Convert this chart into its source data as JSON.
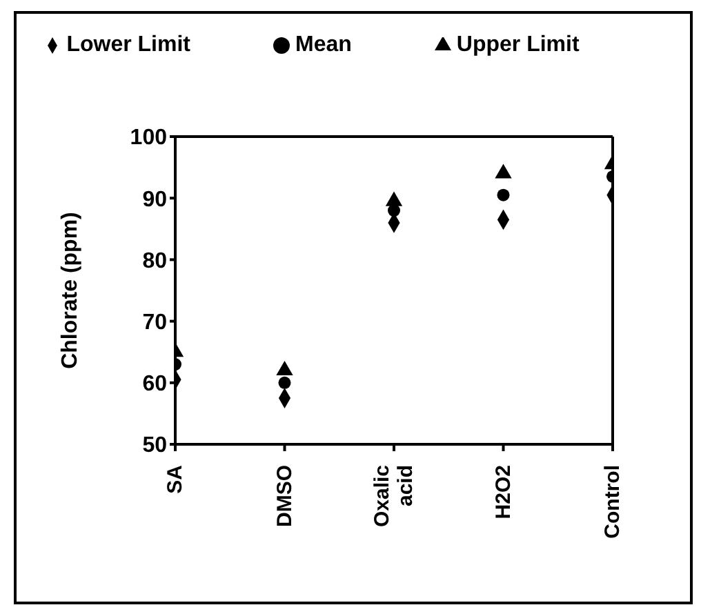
{
  "chart_data": {
    "type": "scatter",
    "ylabel": "Chlorate (ppm)",
    "categories": [
      "SA",
      "DMSO",
      "Oxalic acid",
      "H2O2",
      "Control"
    ],
    "series": [
      {
        "name": "Lower Limit",
        "color": "#000000",
        "marker": "diamond",
        "values": [
          60.5,
          57.5,
          86,
          86.5,
          90.5
        ]
      },
      {
        "name": "Mean",
        "color": "#000000",
        "marker": "circle",
        "values": [
          63,
          60,
          88,
          90.5,
          93.5
        ]
      },
      {
        "name": "Upper Limit",
        "color": "#000000",
        "marker": "triangle",
        "values": [
          65,
          62,
          89.5,
          94,
          95.5
        ]
      }
    ],
    "ylim": [
      50,
      100
    ],
    "yticks": [
      50,
      60,
      70,
      80,
      90,
      100
    ],
    "grid": false,
    "legend": "top"
  }
}
